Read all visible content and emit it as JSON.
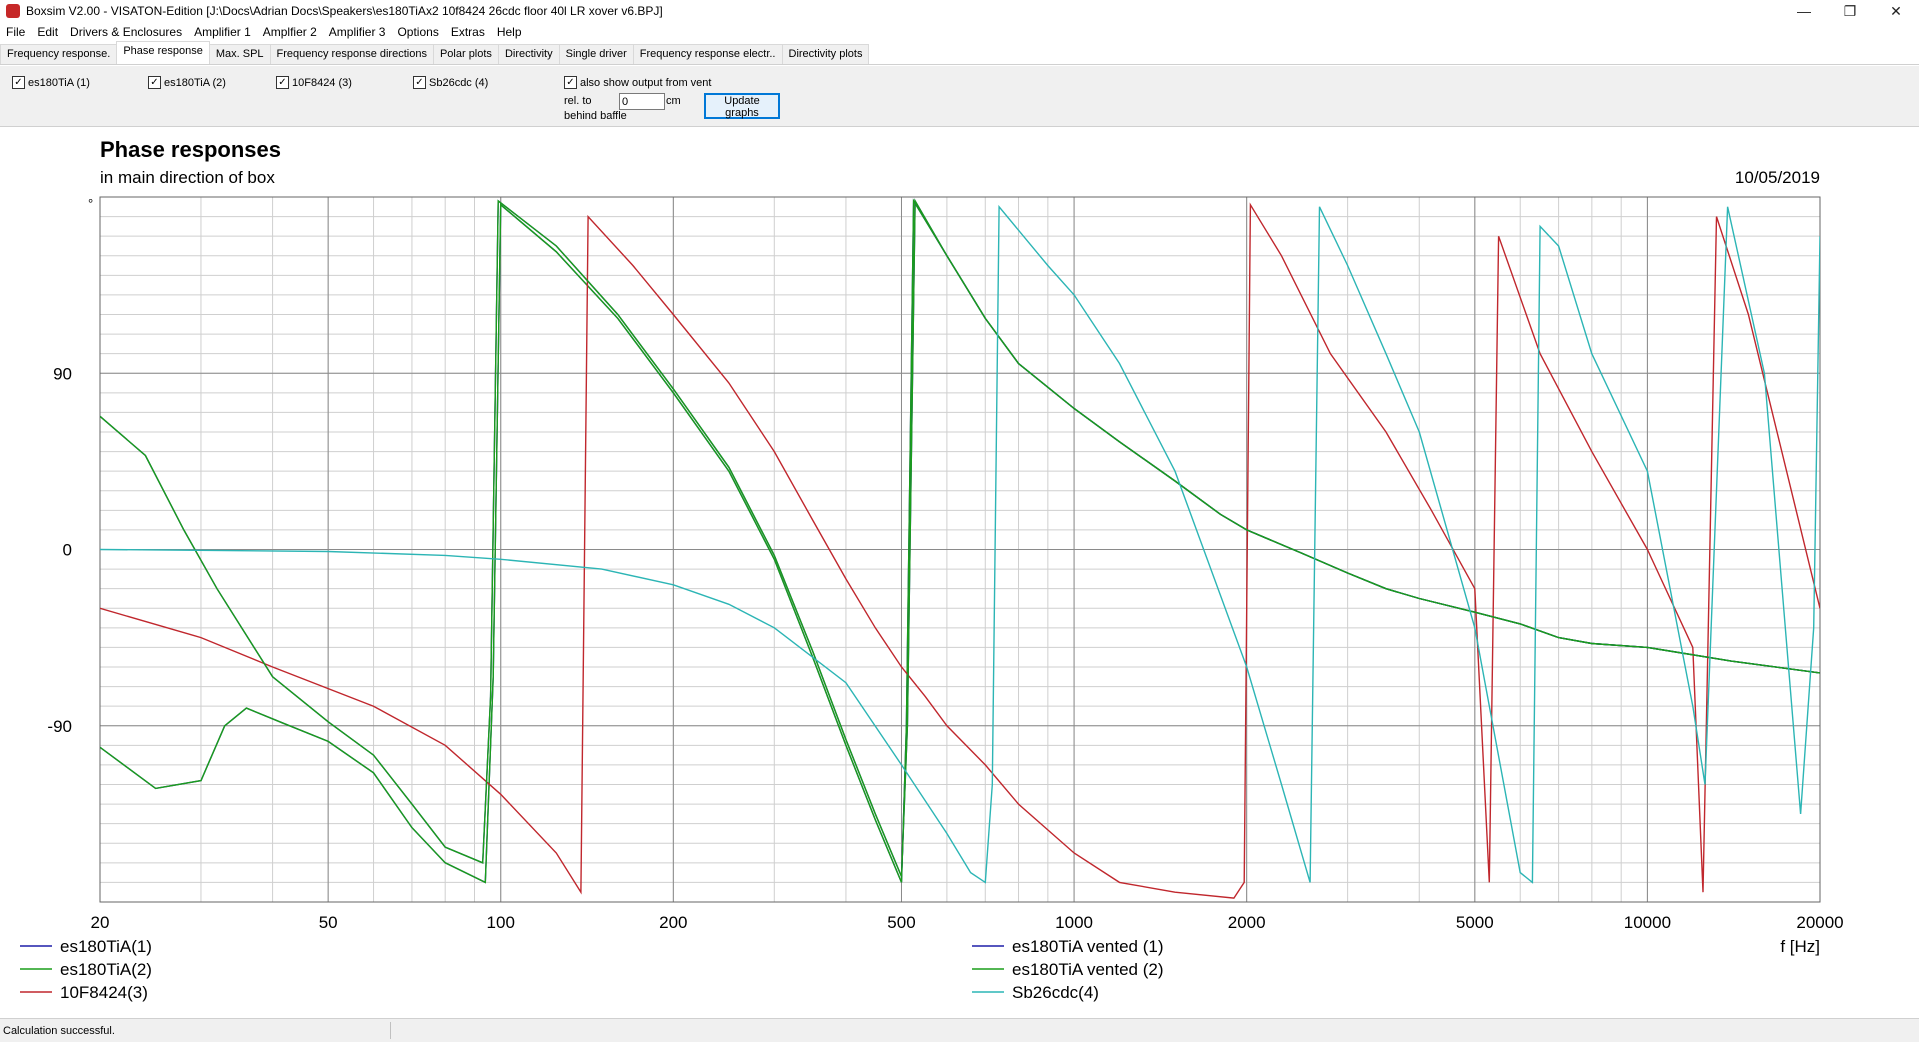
{
  "window": {
    "title": "Boxsim V2.00 - VISATON-Edition [J:\\Docs\\Adrian Docs\\Speakers\\es180TiAx2 10f8424 26cdc floor 40l LR xover v6.BPJ]",
    "minimize_glyph": "—",
    "maximize_glyph": "❐",
    "close_glyph": "✕"
  },
  "menu": [
    "File",
    "Edit",
    "Drivers & Enclosures",
    "Amplifier 1",
    "Amplfier 2",
    "Amplifier 3",
    "Options",
    "Extras",
    "Help"
  ],
  "tabs": [
    "Frequency response.",
    "Phase response",
    "Max. SPL",
    "Frequency response directions",
    "Polar plots",
    "Directivity",
    "Single driver",
    "Frequency response electr..",
    "Directivity plots"
  ],
  "active_tab": 1,
  "options": {
    "drivers": [
      {
        "label": "es180TiA (1)",
        "checked": true
      },
      {
        "label": "es180TiA (2)",
        "checked": true
      },
      {
        "label": "10F8424 (3)",
        "checked": true
      },
      {
        "label": "Sb26cdc (4)",
        "checked": true
      }
    ],
    "vent_label": "also show output from vent",
    "vent_checked": true,
    "rel_to_label": "rel. to",
    "behind_baffle_label": "behind baffle",
    "cm_value": "0",
    "cm_unit": "cm",
    "update_button": "Update graphs",
    "check_glyph": "✓"
  },
  "chart_data": {
    "type": "line",
    "title": "Phase responses",
    "subtitle": "in main direction of box",
    "date": "10/05/2019",
    "y_unit": "°",
    "x_unit": "f [Hz]",
    "x_scale": "log",
    "xlim": [
      20,
      20000
    ],
    "ylim": [
      -180,
      180
    ],
    "x_ticks": [
      20,
      50,
      100,
      200,
      500,
      1000,
      2000,
      5000,
      10000,
      20000
    ],
    "y_ticks": [
      90,
      0,
      -90
    ],
    "grid": true,
    "legend_position": "bottom",
    "series": [
      {
        "name": "es180TiA(1)",
        "color": "#1f1fa8",
        "points": [
          [
            20,
            -101
          ],
          [
            25,
            -122
          ],
          [
            30,
            -118
          ],
          [
            33,
            -90
          ],
          [
            36,
            -81
          ],
          [
            42,
            -89
          ],
          [
            50,
            -98
          ],
          [
            60,
            -114
          ],
          [
            70,
            -142
          ],
          [
            80,
            -160
          ],
          [
            94,
            -170
          ],
          [
            97,
            -65
          ],
          [
            100,
            176
          ],
          [
            125,
            152
          ],
          [
            160,
            118
          ],
          [
            200,
            80
          ],
          [
            250,
            40
          ],
          [
            300,
            -5
          ],
          [
            350,
            -55
          ],
          [
            400,
            -100
          ],
          [
            450,
            -138
          ],
          [
            500,
            -170
          ],
          [
            510,
            -90
          ],
          [
            525,
            178
          ],
          [
            600,
            150
          ],
          [
            700,
            118
          ],
          [
            800,
            95
          ],
          [
            1000,
            72
          ],
          [
            1200,
            55
          ],
          [
            1500,
            35
          ],
          [
            1800,
            18
          ],
          [
            2000,
            10
          ],
          [
            2500,
            -2
          ],
          [
            3000,
            -12
          ],
          [
            3500,
            -20
          ],
          [
            4000,
            -25
          ],
          [
            5000,
            -32
          ],
          [
            6000,
            -38
          ],
          [
            7000,
            -45
          ],
          [
            8000,
            -48
          ],
          [
            10000,
            -50
          ],
          [
            14000,
            -57
          ],
          [
            20000,
            -63
          ]
        ]
      },
      {
        "name": "es180TiA(2)",
        "color": "#1a9e1a",
        "points": [
          [
            20,
            -101
          ],
          [
            25,
            -122
          ],
          [
            30,
            -118
          ],
          [
            33,
            -90
          ],
          [
            36,
            -81
          ],
          [
            42,
            -89
          ],
          [
            50,
            -98
          ],
          [
            60,
            -114
          ],
          [
            70,
            -142
          ],
          [
            80,
            -160
          ],
          [
            94,
            -170
          ],
          [
            97,
            -65
          ],
          [
            100,
            176
          ],
          [
            125,
            152
          ],
          [
            160,
            118
          ],
          [
            200,
            80
          ],
          [
            250,
            40
          ],
          [
            300,
            -5
          ],
          [
            350,
            -55
          ],
          [
            400,
            -100
          ],
          [
            450,
            -138
          ],
          [
            500,
            -170
          ],
          [
            510,
            -90
          ],
          [
            525,
            178
          ],
          [
            600,
            150
          ],
          [
            700,
            118
          ],
          [
            800,
            95
          ],
          [
            1000,
            72
          ],
          [
            1200,
            55
          ],
          [
            1500,
            35
          ],
          [
            1800,
            18
          ],
          [
            2000,
            10
          ],
          [
            2500,
            -2
          ],
          [
            3000,
            -12
          ],
          [
            3500,
            -20
          ],
          [
            4000,
            -25
          ],
          [
            5000,
            -32
          ],
          [
            6000,
            -38
          ],
          [
            7000,
            -45
          ],
          [
            8000,
            -48
          ],
          [
            10000,
            -50
          ],
          [
            14000,
            -57
          ],
          [
            20000,
            -63
          ]
        ]
      },
      {
        "name": "10F8424(3)",
        "color": "#c0272d",
        "points": [
          [
            20,
            -30
          ],
          [
            30,
            -45
          ],
          [
            40,
            -60
          ],
          [
            60,
            -80
          ],
          [
            80,
            -100
          ],
          [
            100,
            -125
          ],
          [
            125,
            -155
          ],
          [
            138,
            -175
          ],
          [
            142,
            170
          ],
          [
            170,
            145
          ],
          [
            200,
            120
          ],
          [
            250,
            85
          ],
          [
            300,
            50
          ],
          [
            350,
            15
          ],
          [
            400,
            -15
          ],
          [
            450,
            -40
          ],
          [
            500,
            -60
          ],
          [
            550,
            -75
          ],
          [
            600,
            -90
          ],
          [
            700,
            -110
          ],
          [
            800,
            -130
          ],
          [
            1000,
            -155
          ],
          [
            1200,
            -170
          ],
          [
            1500,
            -175
          ],
          [
            1900,
            -178
          ],
          [
            1980,
            -170
          ],
          [
            2030,
            176
          ],
          [
            2300,
            150
          ],
          [
            2800,
            100
          ],
          [
            3500,
            60
          ],
          [
            4200,
            20
          ],
          [
            5000,
            -20
          ],
          [
            5300,
            -170
          ],
          [
            5500,
            160
          ],
          [
            6500,
            100
          ],
          [
            8000,
            50
          ],
          [
            10000,
            0
          ],
          [
            12000,
            -50
          ],
          [
            12500,
            -175
          ],
          [
            13200,
            170
          ],
          [
            15000,
            120
          ],
          [
            20000,
            -30
          ]
        ]
      },
      {
        "name": "es180TiA vented (1)",
        "color": "#1f1fa8",
        "points": [
          [
            20,
            68
          ],
          [
            24,
            48
          ],
          [
            28,
            10
          ],
          [
            32,
            -20
          ],
          [
            40,
            -65
          ],
          [
            50,
            -88
          ],
          [
            60,
            -105
          ],
          [
            70,
            -130
          ],
          [
            80,
            -152
          ],
          [
            93,
            -160
          ],
          [
            96,
            -75
          ],
          [
            99,
            178
          ],
          [
            125,
            155
          ],
          [
            160,
            120
          ],
          [
            200,
            82
          ],
          [
            250,
            42
          ],
          [
            300,
            -3
          ],
          [
            350,
            -52
          ],
          [
            400,
            -97
          ],
          [
            450,
            -135
          ],
          [
            500,
            -167
          ],
          [
            512,
            -90
          ],
          [
            528,
            178
          ],
          [
            600,
            150
          ],
          [
            700,
            118
          ],
          [
            800,
            95
          ],
          [
            1000,
            72
          ],
          [
            1200,
            55
          ],
          [
            1500,
            35
          ],
          [
            1800,
            18
          ],
          [
            2000,
            10
          ],
          [
            2500,
            -2
          ],
          [
            3000,
            -12
          ],
          [
            3500,
            -20
          ],
          [
            4000,
            -25
          ],
          [
            5000,
            -32
          ],
          [
            6000,
            -38
          ],
          [
            7000,
            -45
          ],
          [
            8000,
            -48
          ],
          [
            10000,
            -50
          ],
          [
            14000,
            -57
          ],
          [
            20000,
            -63
          ]
        ]
      },
      {
        "name": "es180TiA vented (2)",
        "color": "#1a9e1a",
        "points": [
          [
            20,
            68
          ],
          [
            24,
            48
          ],
          [
            28,
            10
          ],
          [
            32,
            -20
          ],
          [
            40,
            -65
          ],
          [
            50,
            -88
          ],
          [
            60,
            -105
          ],
          [
            70,
            -130
          ],
          [
            80,
            -152
          ],
          [
            93,
            -160
          ],
          [
            96,
            -75
          ],
          [
            99,
            178
          ],
          [
            125,
            155
          ],
          [
            160,
            120
          ],
          [
            200,
            82
          ],
          [
            250,
            42
          ],
          [
            300,
            -3
          ],
          [
            350,
            -52
          ],
          [
            400,
            -97
          ],
          [
            450,
            -135
          ],
          [
            500,
            -167
          ],
          [
            512,
            -90
          ],
          [
            528,
            178
          ],
          [
            600,
            150
          ],
          [
            700,
            118
          ],
          [
            800,
            95
          ],
          [
            1000,
            72
          ],
          [
            1200,
            55
          ],
          [
            1500,
            35
          ],
          [
            1800,
            18
          ],
          [
            2000,
            10
          ],
          [
            2500,
            -2
          ],
          [
            3000,
            -12
          ],
          [
            3500,
            -20
          ],
          [
            4000,
            -25
          ],
          [
            5000,
            -32
          ],
          [
            6000,
            -38
          ],
          [
            7000,
            -45
          ],
          [
            8000,
            -48
          ],
          [
            10000,
            -50
          ],
          [
            14000,
            -57
          ],
          [
            20000,
            -63
          ]
        ]
      },
      {
        "name": "Sb26cdc(4)",
        "color": "#2cb5b5",
        "points": [
          [
            20,
            0
          ],
          [
            50,
            -1
          ],
          [
            80,
            -3
          ],
          [
            100,
            -5
          ],
          [
            150,
            -10
          ],
          [
            200,
            -18
          ],
          [
            250,
            -28
          ],
          [
            300,
            -40
          ],
          [
            400,
            -68
          ],
          [
            500,
            -110
          ],
          [
            600,
            -145
          ],
          [
            660,
            -165
          ],
          [
            700,
            -170
          ],
          [
            720,
            -120
          ],
          [
            740,
            175
          ],
          [
            900,
            145
          ],
          [
            1000,
            130
          ],
          [
            1200,
            95
          ],
          [
            1500,
            40
          ],
          [
            2000,
            -60
          ],
          [
            2300,
            -120
          ],
          [
            2580,
            -170
          ],
          [
            2680,
            175
          ],
          [
            3000,
            145
          ],
          [
            3500,
            100
          ],
          [
            4000,
            60
          ],
          [
            5000,
            -40
          ],
          [
            6000,
            -165
          ],
          [
            6300,
            -170
          ],
          [
            6500,
            165
          ],
          [
            7000,
            155
          ],
          [
            8000,
            100
          ],
          [
            10000,
            40
          ],
          [
            12000,
            -80
          ],
          [
            12600,
            -120
          ],
          [
            13800,
            175
          ],
          [
            16000,
            90
          ],
          [
            18500,
            -135
          ],
          [
            19500,
            -40
          ],
          [
            20000,
            160
          ]
        ]
      }
    ]
  },
  "status": {
    "text": "Calculation successful."
  }
}
